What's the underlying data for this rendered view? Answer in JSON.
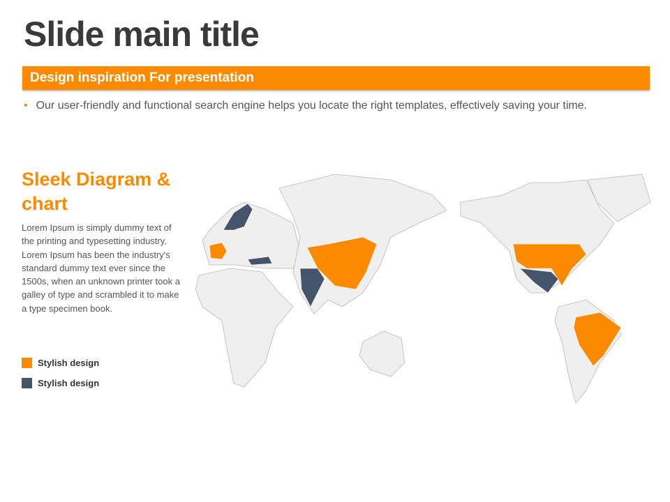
{
  "title": "Slide main title",
  "banner": "Design inspiration For presentation",
  "bullet": "Our user-friendly and functional search engine helps you locate the right templates, effectively saving your time.",
  "section": {
    "heading": "Sleek Diagram & chart",
    "body": "Lorem Ipsum is simply dummy text of the printing and typesetting industry. Lorem Ipsum has been the industry's standard dummy text ever since the 1500s, when an unknown printer took a galley of type and scrambled it to make a type specimen book."
  },
  "legend": [
    {
      "label": "Stylish design",
      "color": "#fb8a00"
    },
    {
      "label": "Stylish design",
      "color": "#44546a"
    }
  ],
  "colors": {
    "accent": "#fb8a00",
    "dark": "#44546a",
    "land": "#efefef"
  }
}
